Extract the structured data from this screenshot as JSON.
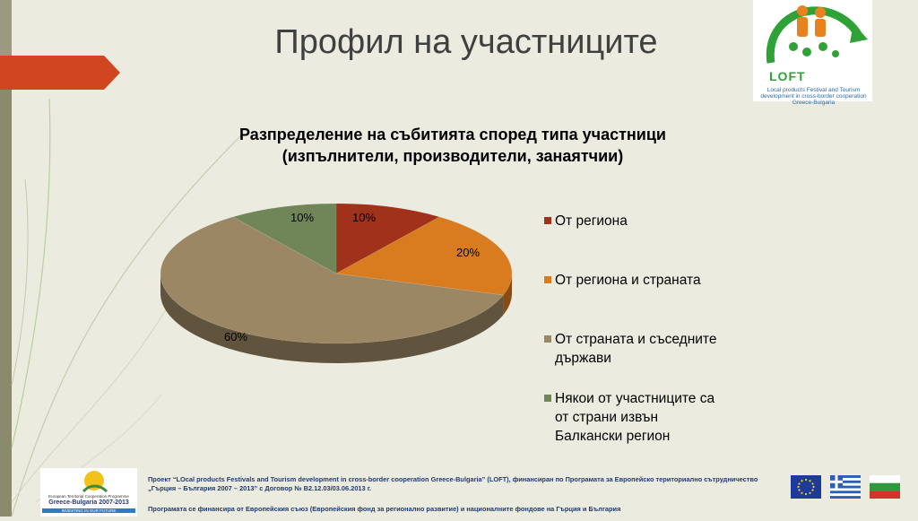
{
  "slide": {
    "title": "Профил на участниците"
  },
  "logo": {
    "text": "LOFT",
    "subtitle": "Local products Festival and Tourism development in cross-border cooperation Greece-Bulgaria"
  },
  "chart_data": {
    "type": "pie",
    "title": "Разпределение на събитията според типа участници (изпълнители, производители, занаятчии)",
    "slices": [
      {
        "label": "От региона",
        "value": 10,
        "data_label": "10%",
        "color": "#a0311b"
      },
      {
        "label": "От региона и страната",
        "value": 20,
        "data_label": "20%",
        "color": "#d97b1f"
      },
      {
        "label": "От страната и съседните държави",
        "value": 60,
        "data_label": "60%",
        "color": "#9c8764"
      },
      {
        "label": "Някои от участниците са от страни извън Балканския регион",
        "value": 10,
        "data_label": "10%",
        "color": "#708659"
      }
    ],
    "legend_labels": [
      "От региона",
      "От региона и страната",
      "От страната и съседните\nдържави",
      "Някои от участниците са\nот страни извън\nБалкански регион"
    ],
    "legend_position": "right"
  },
  "footer": {
    "logo_line1": "European Territorial Cooperation Programme",
    "logo_line2": "Greece-Bulgaria 2007-2013",
    "logo_line3": "INVESTING IN OUR FUTURE",
    "project_text": "Проект “LOcal products Festivals and Tourism development in cross-border cooperation Greece-Bulgaria” (LOFT), финансиран по Програмата за Европейско териториално сътрудничество „Гърция – България 2007 – 2013” с Договор № B2.12.03/03.06.2013 г.",
    "funding_text": "Програмата се финансира от Европейския съюз (Европейския фонд за регионално развитие) и националните фондове на Гърция и България"
  },
  "flags": [
    "eu-flag-icon",
    "greece-flag-icon",
    "bulgaria-flag-icon"
  ]
}
